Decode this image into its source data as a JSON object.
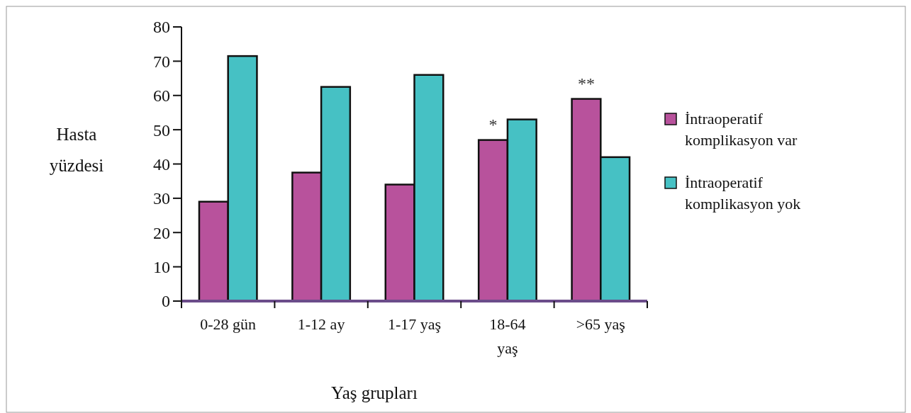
{
  "chart_data": {
    "type": "bar",
    "xlabel": "Yaş grupları",
    "ylabel": "Hasta yüzdesi",
    "categories": [
      "0-28 gün",
      "1-12 ay",
      "1-17 yaş",
      "18-64 yaş",
      ">65 yaş"
    ],
    "series": [
      {
        "name": "İntraoperatif komplikasyon var",
        "color": "#b8529c",
        "values": [
          29,
          37.5,
          34,
          47,
          59
        ]
      },
      {
        "name": "İntraoperatif komplikasyon yok",
        "color": "#46c1c4",
        "values": [
          71.5,
          62.5,
          66,
          53,
          42
        ]
      }
    ],
    "ylim": [
      0,
      80
    ],
    "yticks": [
      0,
      10,
      20,
      30,
      40,
      50,
      60,
      70,
      80
    ],
    "grid": false,
    "legend": "right",
    "annotations": [
      {
        "text": "*",
        "x": "18-64 yaş",
        "y": 47
      },
      {
        "text": "**",
        "x": ">65 yaş",
        "y": 59
      }
    ]
  }
}
